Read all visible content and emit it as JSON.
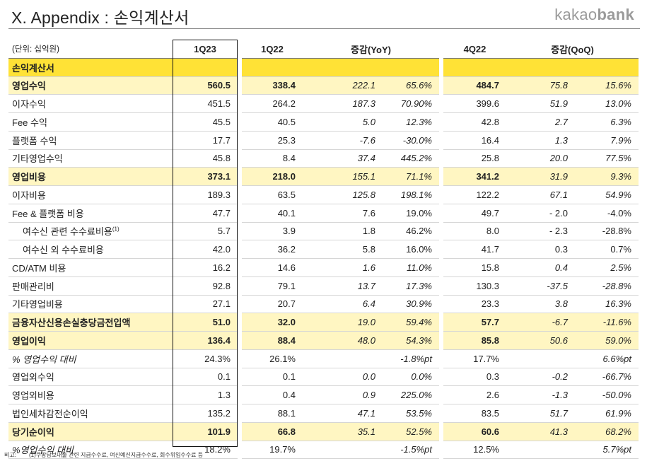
{
  "header": {
    "title": "X. Appendix : 손익계산서",
    "logo_regular": "kakao",
    "logo_bold": "bank"
  },
  "table": {
    "unit": "(단위: 십억원)",
    "columns": [
      "1Q23",
      "1Q22",
      "증감(YoY)",
      "4Q22",
      "증감(QoQ)"
    ],
    "section_label": "손익계산서",
    "rows": [
      {
        "label": "영업수익",
        "kind": "band",
        "c1": "560.5",
        "c2": "338.4",
        "c3": "222.1",
        "c4": "65.6%",
        "c5": "484.7",
        "c6": "75.8",
        "c7": "15.6%"
      },
      {
        "label": "이자수익",
        "kind": "plain",
        "c1": "451.5",
        "c2": "264.2",
        "c3": "187.3",
        "c4": "70.90%",
        "c5": "399.6",
        "c6": "51.9",
        "c7": "13.0%"
      },
      {
        "label": "Fee 수익",
        "kind": "plain",
        "c1": "45.5",
        "c2": "40.5",
        "c3": "5.0",
        "c4": "12.3%",
        "c5": "42.8",
        "c6": "2.7",
        "c7": "6.3%"
      },
      {
        "label": "플랫폼 수익",
        "kind": "plain",
        "c1": "17.7",
        "c2": "25.3",
        "c3": "-7.6",
        "c4": "-30.0%",
        "c5": "16.4",
        "c6": "1.3",
        "c7": "7.9%"
      },
      {
        "label": "기타영업수익",
        "kind": "plain",
        "c1": "45.8",
        "c2": "8.4",
        "c3": "37.4",
        "c4": "445.2%",
        "c5": "25.8",
        "c6": "20.0",
        "c7": "77.5%"
      },
      {
        "label": "영업비용",
        "kind": "band",
        "c1": "373.1",
        "c2": "218.0",
        "c3": "155.1",
        "c4": "71.1%",
        "c5": "341.2",
        "c6": "31.9",
        "c7": "9.3%"
      },
      {
        "label": "이자비용",
        "kind": "plain",
        "c1": "189.3",
        "c2": "63.5",
        "c3": "125.8",
        "c4": "198.1%",
        "c5": "122.2",
        "c6": "67.1",
        "c7": "54.9%"
      },
      {
        "label": "Fee & 플랫폼 비용",
        "kind": "upright",
        "c1": "47.7",
        "c2": "40.1",
        "c3": "7.6",
        "c4": "19.0%",
        "c5": "49.7",
        "c6": "- 2.0",
        "c7": "-4.0%"
      },
      {
        "label": "여수신 관련 수수료비용",
        "note": "(1)",
        "kind": "upright-sub",
        "c1": "5.7",
        "c2": "3.9",
        "c3": "1.8",
        "c4": "46.2%",
        "c5": "8.0",
        "c6": "- 2.3",
        "c7": "-28.8%"
      },
      {
        "label": "여수신 외 수수료비용",
        "kind": "upright-sub",
        "c1": "42.0",
        "c2": "36.2",
        "c3": "5.8",
        "c4": "16.0%",
        "c5": "41.7",
        "c6": "0.3",
        "c7": "0.7%"
      },
      {
        "label": "CD/ATM 비용",
        "kind": "plain",
        "c1": "16.2",
        "c2": "14.6",
        "c3": "1.6",
        "c4": "11.0%",
        "c5": "15.8",
        "c6": "0.4",
        "c7": "2.5%"
      },
      {
        "label": "판매관리비",
        "kind": "plain",
        "c1": "92.8",
        "c2": "79.1",
        "c3": "13.7",
        "c4": "17.3%",
        "c5": "130.3",
        "c6": "-37.5",
        "c7": "-28.8%"
      },
      {
        "label": "기타영업비용",
        "kind": "plain",
        "c1": "27.1",
        "c2": "20.7",
        "c3": "6.4",
        "c4": "30.9%",
        "c5": "23.3",
        "c6": "3.8",
        "c7": "16.3%"
      },
      {
        "label": "금융자산신용손실충당금전입액",
        "kind": "band",
        "c1": "51.0",
        "c2": "32.0",
        "c3": "19.0",
        "c4": "59.4%",
        "c5": "57.7",
        "c6": "-6.7",
        "c7": "-11.6%"
      },
      {
        "label": "영업이익",
        "kind": "band",
        "c1": "136.4",
        "c2": "88.4",
        "c3": "48.0",
        "c4": "54.3%",
        "c5": "85.8",
        "c6": "50.6",
        "c7": "59.0%"
      },
      {
        "label": "% 영업수익 대비",
        "kind": "ratio",
        "c1": "24.3%",
        "c2": "26.1%",
        "c3": "",
        "c4": "-1.8%pt",
        "c5": "17.7%",
        "c6": "",
        "c7": "6.6%pt"
      },
      {
        "label": "영업외수익",
        "kind": "plain",
        "c1": "0.1",
        "c2": "0.1",
        "c3": "0.0",
        "c4": "0.0%",
        "c5": "0.3",
        "c6": "-0.2",
        "c7": "-66.7%"
      },
      {
        "label": "영업외비용",
        "kind": "plain",
        "c1": "1.3",
        "c2": "0.4",
        "c3": "0.9",
        "c4": "225.0%",
        "c5": "2.6",
        "c6": "-1.3",
        "c7": "-50.0%"
      },
      {
        "label": "법인세차감전순이익",
        "kind": "plain",
        "c1": "135.2",
        "c2": "88.1",
        "c3": "47.1",
        "c4": "53.5%",
        "c5": "83.5",
        "c6": "51.7",
        "c7": "61.9%"
      },
      {
        "label": "당기순이익",
        "kind": "band",
        "c1": "101.9",
        "c2": "66.8",
        "c3": "35.1",
        "c4": "52.5%",
        "c5": "60.6",
        "c6": "41.3",
        "c7": "68.2%"
      },
      {
        "label": "%영업수익 대비",
        "kind": "ratio",
        "c1": "18.2%",
        "c2": "19.7%",
        "c3": "",
        "c4": "-1.5%pt",
        "c5": "12.5%",
        "c6": "",
        "c7": "5.7%pt"
      }
    ]
  },
  "footnote": {
    "label": "비고:",
    "text": "(1)쿠팡담보대출 관련 지급수수료, 여신예신지급수수료, 회수위임수수료 등"
  }
}
